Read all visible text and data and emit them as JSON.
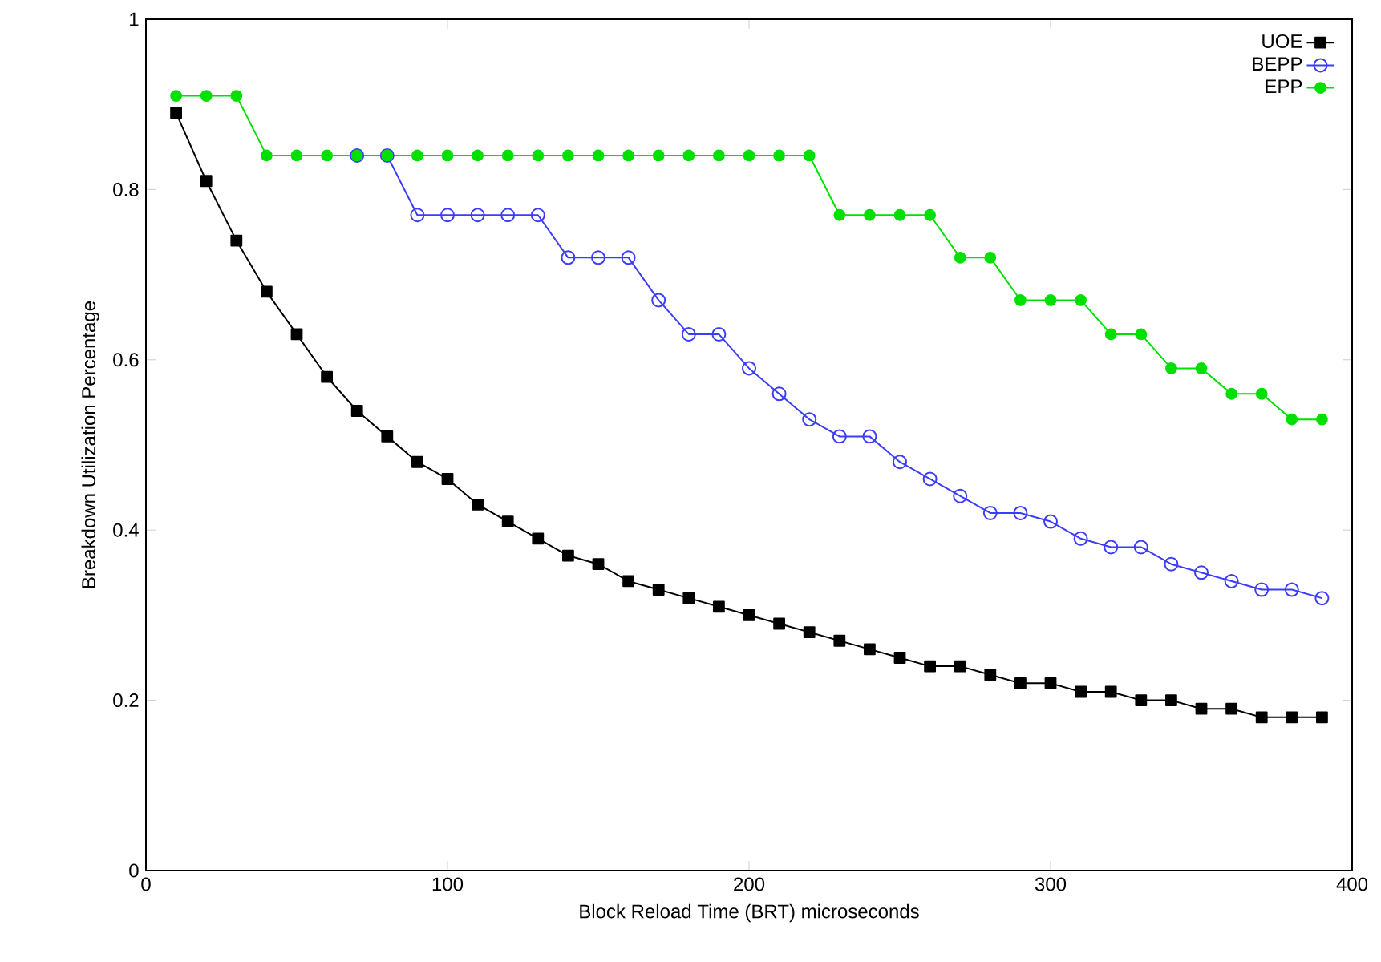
{
  "chart_data": {
    "type": "line",
    "xlabel": "Block Reload Time (BRT) microseconds",
    "ylabel": "Breakdown Utilization Percentage",
    "x": [
      10,
      20,
      30,
      40,
      50,
      60,
      70,
      80,
      90,
      100,
      110,
      120,
      130,
      140,
      150,
      160,
      170,
      180,
      190,
      200,
      210,
      220,
      230,
      240,
      250,
      260,
      270,
      280,
      290,
      300,
      310,
      320,
      330,
      340,
      350,
      360,
      370,
      380,
      390
    ],
    "series": [
      {
        "name": "UOE",
        "color": "#000000",
        "marker": "square",
        "values": [
          0.89,
          0.81,
          0.74,
          0.68,
          0.63,
          0.58,
          0.54,
          0.51,
          0.48,
          0.46,
          0.43,
          0.41,
          0.39,
          0.37,
          0.36,
          0.34,
          0.33,
          0.32,
          0.31,
          0.3,
          0.29,
          0.28,
          0.27,
          0.26,
          0.25,
          0.24,
          0.24,
          0.23,
          0.22,
          0.22,
          0.21,
          0.21,
          0.2,
          0.2,
          0.19,
          0.19,
          0.18,
          0.18,
          0.18
        ]
      },
      {
        "name": "BEPP",
        "color": "#3c3cff",
        "marker": "circle",
        "values": [
          null,
          null,
          null,
          null,
          null,
          null,
          0.84,
          0.84,
          0.77,
          0.77,
          0.77,
          0.77,
          0.77,
          0.72,
          0.72,
          0.72,
          0.67,
          0.63,
          0.63,
          0.59,
          0.56,
          0.53,
          0.51,
          0.51,
          0.48,
          0.46,
          0.44,
          0.42,
          0.42,
          0.41,
          0.39,
          0.38,
          0.38,
          0.36,
          0.35,
          0.34,
          0.33,
          0.33,
          0.32
        ]
      },
      {
        "name": "EPP",
        "color": "#00e000",
        "marker": "dot",
        "values": [
          0.91,
          0.91,
          0.91,
          0.84,
          0.84,
          0.84,
          0.84,
          0.84,
          0.84,
          0.84,
          0.84,
          0.84,
          0.84,
          0.84,
          0.84,
          0.84,
          0.84,
          0.84,
          0.84,
          0.84,
          0.84,
          0.84,
          0.77,
          0.77,
          0.77,
          0.77,
          0.72,
          0.72,
          0.67,
          0.67,
          0.67,
          0.63,
          0.63,
          0.59,
          0.59,
          0.56,
          0.56,
          0.53,
          0.53
        ]
      }
    ],
    "xlim": [
      0,
      400
    ],
    "xticks": [
      0,
      100,
      200,
      300,
      400
    ],
    "ylim": [
      0,
      1
    ],
    "yticks": [
      0,
      0.2,
      0.4,
      0.6,
      0.8,
      1
    ],
    "grid": false,
    "legend": "top right"
  }
}
